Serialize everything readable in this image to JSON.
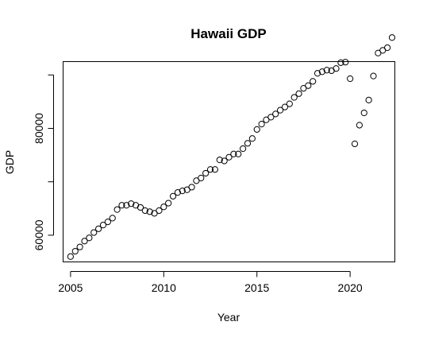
{
  "chart_data": {
    "type": "scatter",
    "title": "Hawaii GDP",
    "xlabel": "Year",
    "ylabel": "GDP",
    "xlim": [
      2004.6,
      2022.4
    ],
    "ylim": [
      55000,
      92500
    ],
    "x_ticks": [
      2005,
      2010,
      2015,
      2020
    ],
    "x_tick_labels": [
      "2005",
      "2010",
      "2015",
      "2020"
    ],
    "y_ticks": [
      60000,
      70000,
      80000,
      90000
    ],
    "y_tick_labels": [
      "60000",
      "",
      "80000",
      ""
    ],
    "grid": false,
    "marker": "open-circle",
    "points": [
      {
        "x": 2005.0,
        "y": 56000
      },
      {
        "x": 2005.25,
        "y": 57000
      },
      {
        "x": 2005.5,
        "y": 57800
      },
      {
        "x": 2005.75,
        "y": 58900
      },
      {
        "x": 2006.0,
        "y": 59500
      },
      {
        "x": 2006.25,
        "y": 60500
      },
      {
        "x": 2006.5,
        "y": 61200
      },
      {
        "x": 2006.75,
        "y": 61900
      },
      {
        "x": 2007.0,
        "y": 62500
      },
      {
        "x": 2007.25,
        "y": 63200
      },
      {
        "x": 2007.5,
        "y": 64800
      },
      {
        "x": 2007.75,
        "y": 65600
      },
      {
        "x": 2008.0,
        "y": 65600
      },
      {
        "x": 2008.25,
        "y": 65900
      },
      {
        "x": 2008.5,
        "y": 65600
      },
      {
        "x": 2008.75,
        "y": 65200
      },
      {
        "x": 2009.0,
        "y": 64600
      },
      {
        "x": 2009.25,
        "y": 64400
      },
      {
        "x": 2009.5,
        "y": 64100
      },
      {
        "x": 2009.75,
        "y": 64600
      },
      {
        "x": 2010.0,
        "y": 65300
      },
      {
        "x": 2010.25,
        "y": 66000
      },
      {
        "x": 2010.5,
        "y": 67300
      },
      {
        "x": 2010.75,
        "y": 68000
      },
      {
        "x": 2011.0,
        "y": 68300
      },
      {
        "x": 2011.25,
        "y": 68500
      },
      {
        "x": 2011.5,
        "y": 69000
      },
      {
        "x": 2011.75,
        "y": 70200
      },
      {
        "x": 2012.0,
        "y": 70700
      },
      {
        "x": 2012.25,
        "y": 71600
      },
      {
        "x": 2012.5,
        "y": 72300
      },
      {
        "x": 2012.75,
        "y": 72300
      },
      {
        "x": 2013.0,
        "y": 74100
      },
      {
        "x": 2013.25,
        "y": 73900
      },
      {
        "x": 2013.5,
        "y": 74600
      },
      {
        "x": 2013.75,
        "y": 75200
      },
      {
        "x": 2014.0,
        "y": 75200
      },
      {
        "x": 2014.25,
        "y": 76200
      },
      {
        "x": 2014.5,
        "y": 77200
      },
      {
        "x": 2014.75,
        "y": 78100
      },
      {
        "x": 2015.0,
        "y": 79800
      },
      {
        "x": 2015.25,
        "y": 80800
      },
      {
        "x": 2015.5,
        "y": 81600
      },
      {
        "x": 2015.75,
        "y": 82100
      },
      {
        "x": 2016.0,
        "y": 82700
      },
      {
        "x": 2016.25,
        "y": 83400
      },
      {
        "x": 2016.5,
        "y": 84000
      },
      {
        "x": 2016.75,
        "y": 84600
      },
      {
        "x": 2017.0,
        "y": 85800
      },
      {
        "x": 2017.25,
        "y": 86500
      },
      {
        "x": 2017.5,
        "y": 87500
      },
      {
        "x": 2017.75,
        "y": 88000
      },
      {
        "x": 2018.0,
        "y": 88800
      },
      {
        "x": 2018.25,
        "y": 90300
      },
      {
        "x": 2018.5,
        "y": 90600
      },
      {
        "x": 2018.75,
        "y": 90900
      },
      {
        "x": 2019.0,
        "y": 90800
      },
      {
        "x": 2019.25,
        "y": 91200
      },
      {
        "x": 2019.5,
        "y": 92300
      },
      {
        "x": 2019.75,
        "y": 92400
      },
      {
        "x": 2020.0,
        "y": 89300
      },
      {
        "x": 2020.25,
        "y": 77100
      },
      {
        "x": 2020.5,
        "y": 80600
      },
      {
        "x": 2020.75,
        "y": 82900
      },
      {
        "x": 2021.0,
        "y": 85300
      },
      {
        "x": 2021.25,
        "y": 89800
      },
      {
        "x": 2021.5,
        "y": 94100
      },
      {
        "x": 2021.75,
        "y": 94600
      },
      {
        "x": 2022.0,
        "y": 95100
      },
      {
        "x": 2022.25,
        "y": 97000
      }
    ]
  }
}
